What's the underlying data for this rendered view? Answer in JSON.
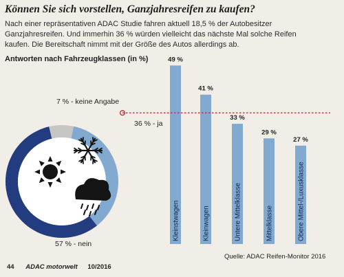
{
  "title": "Können Sie sich vorstellen, Ganzjahresreifen zu kaufen?",
  "intro": "Nach einer repräsentativen ADAC Studie fahren aktuell 18,5 % der Autobesitzer Ganzjahresreifen. Und immerhin 36 % würden vielleicht das nächste Mal solche Reifen kaufen. Die Bereitschaft nimmt mit der Größe des Autos allerdings ab.",
  "subtitle": "Antworten nach Fahrzeugklassen (in %)",
  "source": "Quelle: ADAC Reifen-Monitor 2016",
  "footer": {
    "page": "44",
    "publication": "ADAC motorwelt",
    "issue": "10/2016"
  },
  "colors": {
    "light_blue": "#82a9cf",
    "dark_blue": "#233c80",
    "grey": "#c6c7c5",
    "red_line": "#c8282c"
  },
  "icons": [
    "sun-icon",
    "snowflake-icon",
    "rain-cloud-icon"
  ],
  "chart_data": [
    {
      "type": "pie",
      "slices": [
        {
          "label": "36 % - ja",
          "value": 36,
          "color": "#82a9cf"
        },
        {
          "label": "57 % - nein",
          "value": 57,
          "color": "#233c80"
        },
        {
          "label": "7 % - keine Angabe",
          "value": 7,
          "color": "#c6c7c5"
        }
      ]
    },
    {
      "type": "bar",
      "categories": [
        "Kleinstwagen",
        "Kleinwagen",
        "Untere Mittelklasse",
        "Mittelklasse",
        "Obere Mittel-/Luxusklasse"
      ],
      "values": [
        49,
        41,
        33,
        29,
        27
      ],
      "value_labels": [
        "49 %",
        "41 %",
        "33 %",
        "29 %",
        "27 %"
      ],
      "reference_line": {
        "value": 36
      }
    }
  ]
}
